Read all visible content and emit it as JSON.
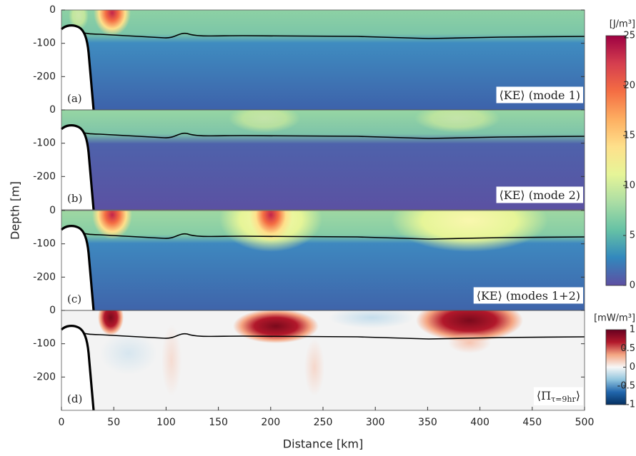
{
  "chart_data": [
    {
      "type": "heatmap",
      "panel_label": "(a)",
      "annotation": {
        "text": "⟨KE⟩ (mode 1)"
      },
      "xlim": [
        0,
        500
      ],
      "ylim": [
        -300,
        0
      ],
      "yticks": [
        0,
        -100,
        -200
      ],
      "ylabel": "Depth [m]",
      "colorbar": {
        "label": "[J/m³]",
        "lim": [
          0,
          25
        ],
        "ticks": [
          0,
          5,
          10,
          15,
          20,
          25
        ],
        "colors": [
          "#5e4fa2",
          "#3288bd",
          "#66c2a5",
          "#abdda4",
          "#e6f598",
          "#fee08b",
          "#fdae61",
          "#f46d43",
          "#d53e4f",
          "#9e0142"
        ]
      }
    },
    {
      "type": "heatmap",
      "panel_label": "(b)",
      "annotation": {
        "text": "⟨KE⟩ (mode 2)"
      },
      "xlim": [
        0,
        500
      ],
      "ylim": [
        -300,
        0
      ],
      "yticks": [
        0,
        -100,
        -200
      ]
    },
    {
      "type": "heatmap",
      "panel_label": "(c)",
      "annotation": {
        "text": "⟨KE⟩ (modes 1+2)"
      },
      "xlim": [
        0,
        500
      ],
      "ylim": [
        -300,
        0
      ],
      "yticks": [
        0,
        -100,
        -200
      ]
    },
    {
      "type": "heatmap",
      "panel_label": "(d)",
      "annotation": {
        "text": "⟨Π",
        "subscript": "τ=9hr",
        "close": "⟩"
      },
      "xlim": [
        0,
        500
      ],
      "ylim": [
        -300,
        0
      ],
      "yticks": [
        0,
        -100,
        -200
      ],
      "xticks": [
        0,
        50,
        100,
        150,
        200,
        250,
        300,
        350,
        400,
        450,
        500
      ],
      "xlabel": "Distance [km]",
      "colorbar": {
        "label": "[mW/m³]",
        "lim": [
          -1,
          1
        ],
        "ticks": [
          1,
          0.5,
          0,
          -0.5,
          -1
        ],
        "colors": [
          "#053061",
          "#2166ac",
          "#92c5de",
          "#f7f7f7",
          "#f4a582",
          "#b2182b",
          "#67001f"
        ]
      }
    }
  ]
}
